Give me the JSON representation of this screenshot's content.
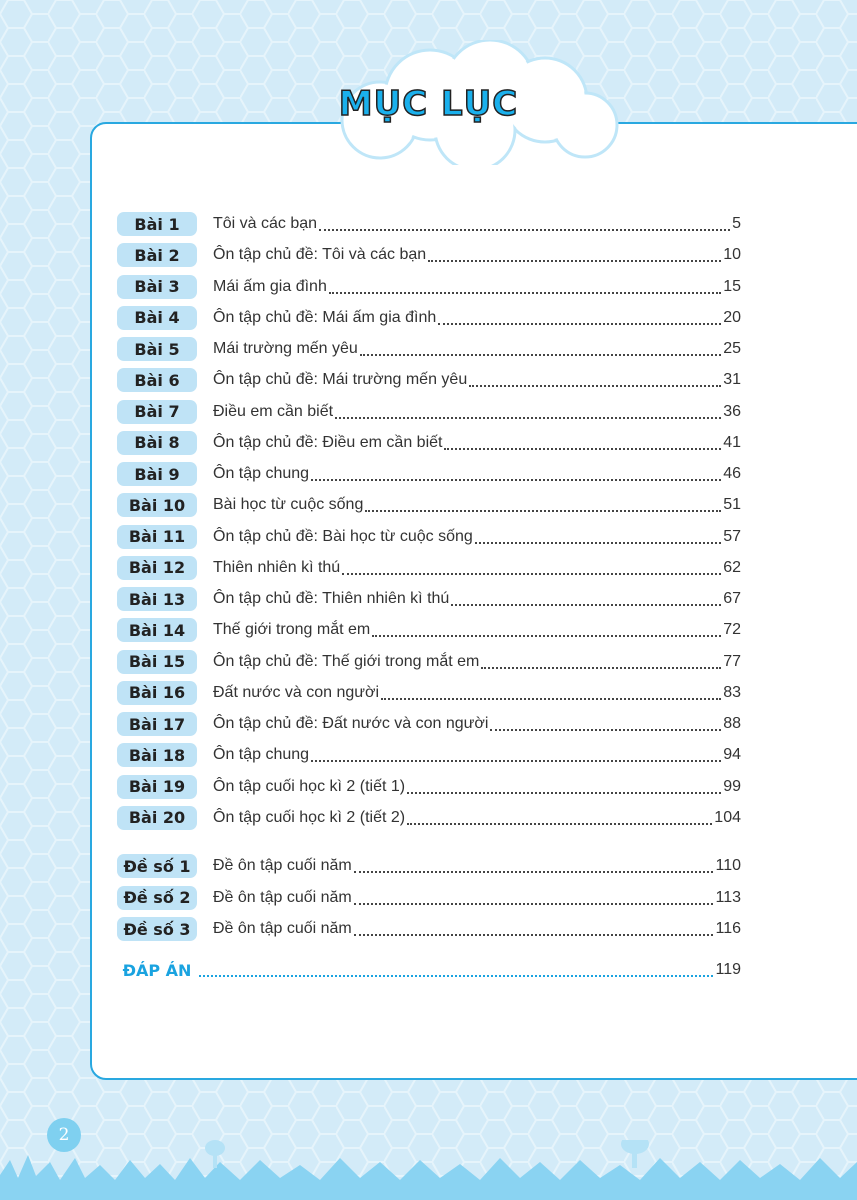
{
  "title": "MỤC LỤC",
  "entries": [
    {
      "label": "Bài 1",
      "title": "Tôi và các bạn",
      "page": "5"
    },
    {
      "label": "Bài 2",
      "title": "Ôn tập chủ đề: Tôi và các bạn",
      "page": "10"
    },
    {
      "label": "Bài 3",
      "title": "Mái ấm gia đình",
      "page": "15"
    },
    {
      "label": "Bài 4",
      "title": "Ôn tập chủ đề: Mái ấm gia đình",
      "page": "20"
    },
    {
      "label": "Bài 5",
      "title": "Mái trường mến yêu",
      "page": "25"
    },
    {
      "label": "Bài 6",
      "title": "Ôn tập chủ đề: Mái trường mến yêu",
      "page": "31"
    },
    {
      "label": "Bài 7",
      "title": "Điều em cần biết",
      "page": "36"
    },
    {
      "label": "Bài 8",
      "title": "Ôn tập chủ đề: Điều em cần biết",
      "page": "41"
    },
    {
      "label": "Bài 9",
      "title": "Ôn tập chung",
      "page": "46"
    },
    {
      "label": "Bài 10",
      "title": "Bài học từ cuộc sống",
      "page": "51"
    },
    {
      "label": "Bài 11",
      "title": "Ôn tập chủ đề: Bài học từ cuộc sống",
      "page": "57"
    },
    {
      "label": "Bài 12",
      "title": "Thiên nhiên kì thú",
      "page": "62"
    },
    {
      "label": "Bài 13",
      "title": "Ôn tập chủ đề: Thiên nhiên kì thú",
      "page": "67"
    },
    {
      "label": "Bài 14",
      "title": "Thế giới trong mắt em",
      "page": "72"
    },
    {
      "label": "Bài 15",
      "title": "Ôn tập chủ đề: Thế giới trong mắt em",
      "page": "77"
    },
    {
      "label": "Bài 16",
      "title": "Đất nước và con người",
      "page": "83"
    },
    {
      "label": "Bài 17",
      "title": "Ôn tập chủ đề: Đất nước và con người",
      "page": "88"
    },
    {
      "label": "Bài 18",
      "title": "Ôn tập chung",
      "page": "94"
    },
    {
      "label": "Bài 19",
      "title": "Ôn tập cuối học kì 2 (tiết 1)",
      "page": "99"
    },
    {
      "label": "Bài 20",
      "title": "Ôn tập cuối học kì 2 (tiết 2)",
      "page": "104"
    }
  ],
  "exams": [
    {
      "label": "Đề số 1",
      "title": "Đề ôn tập cuối năm",
      "page": "110"
    },
    {
      "label": "Đề số 2",
      "title": "Đề ôn tập cuối năm",
      "page": "113"
    },
    {
      "label": "Đề số 3",
      "title": "Đề ôn tập cuối năm",
      "page": "116"
    }
  ],
  "answers": {
    "label": "ĐÁP ÁN",
    "page": "119"
  },
  "page_number": "2",
  "colors": {
    "accent": "#1ab0ec",
    "badge": "#bfe3f6",
    "background": "#d3ebf8",
    "border": "#29a8e0"
  }
}
